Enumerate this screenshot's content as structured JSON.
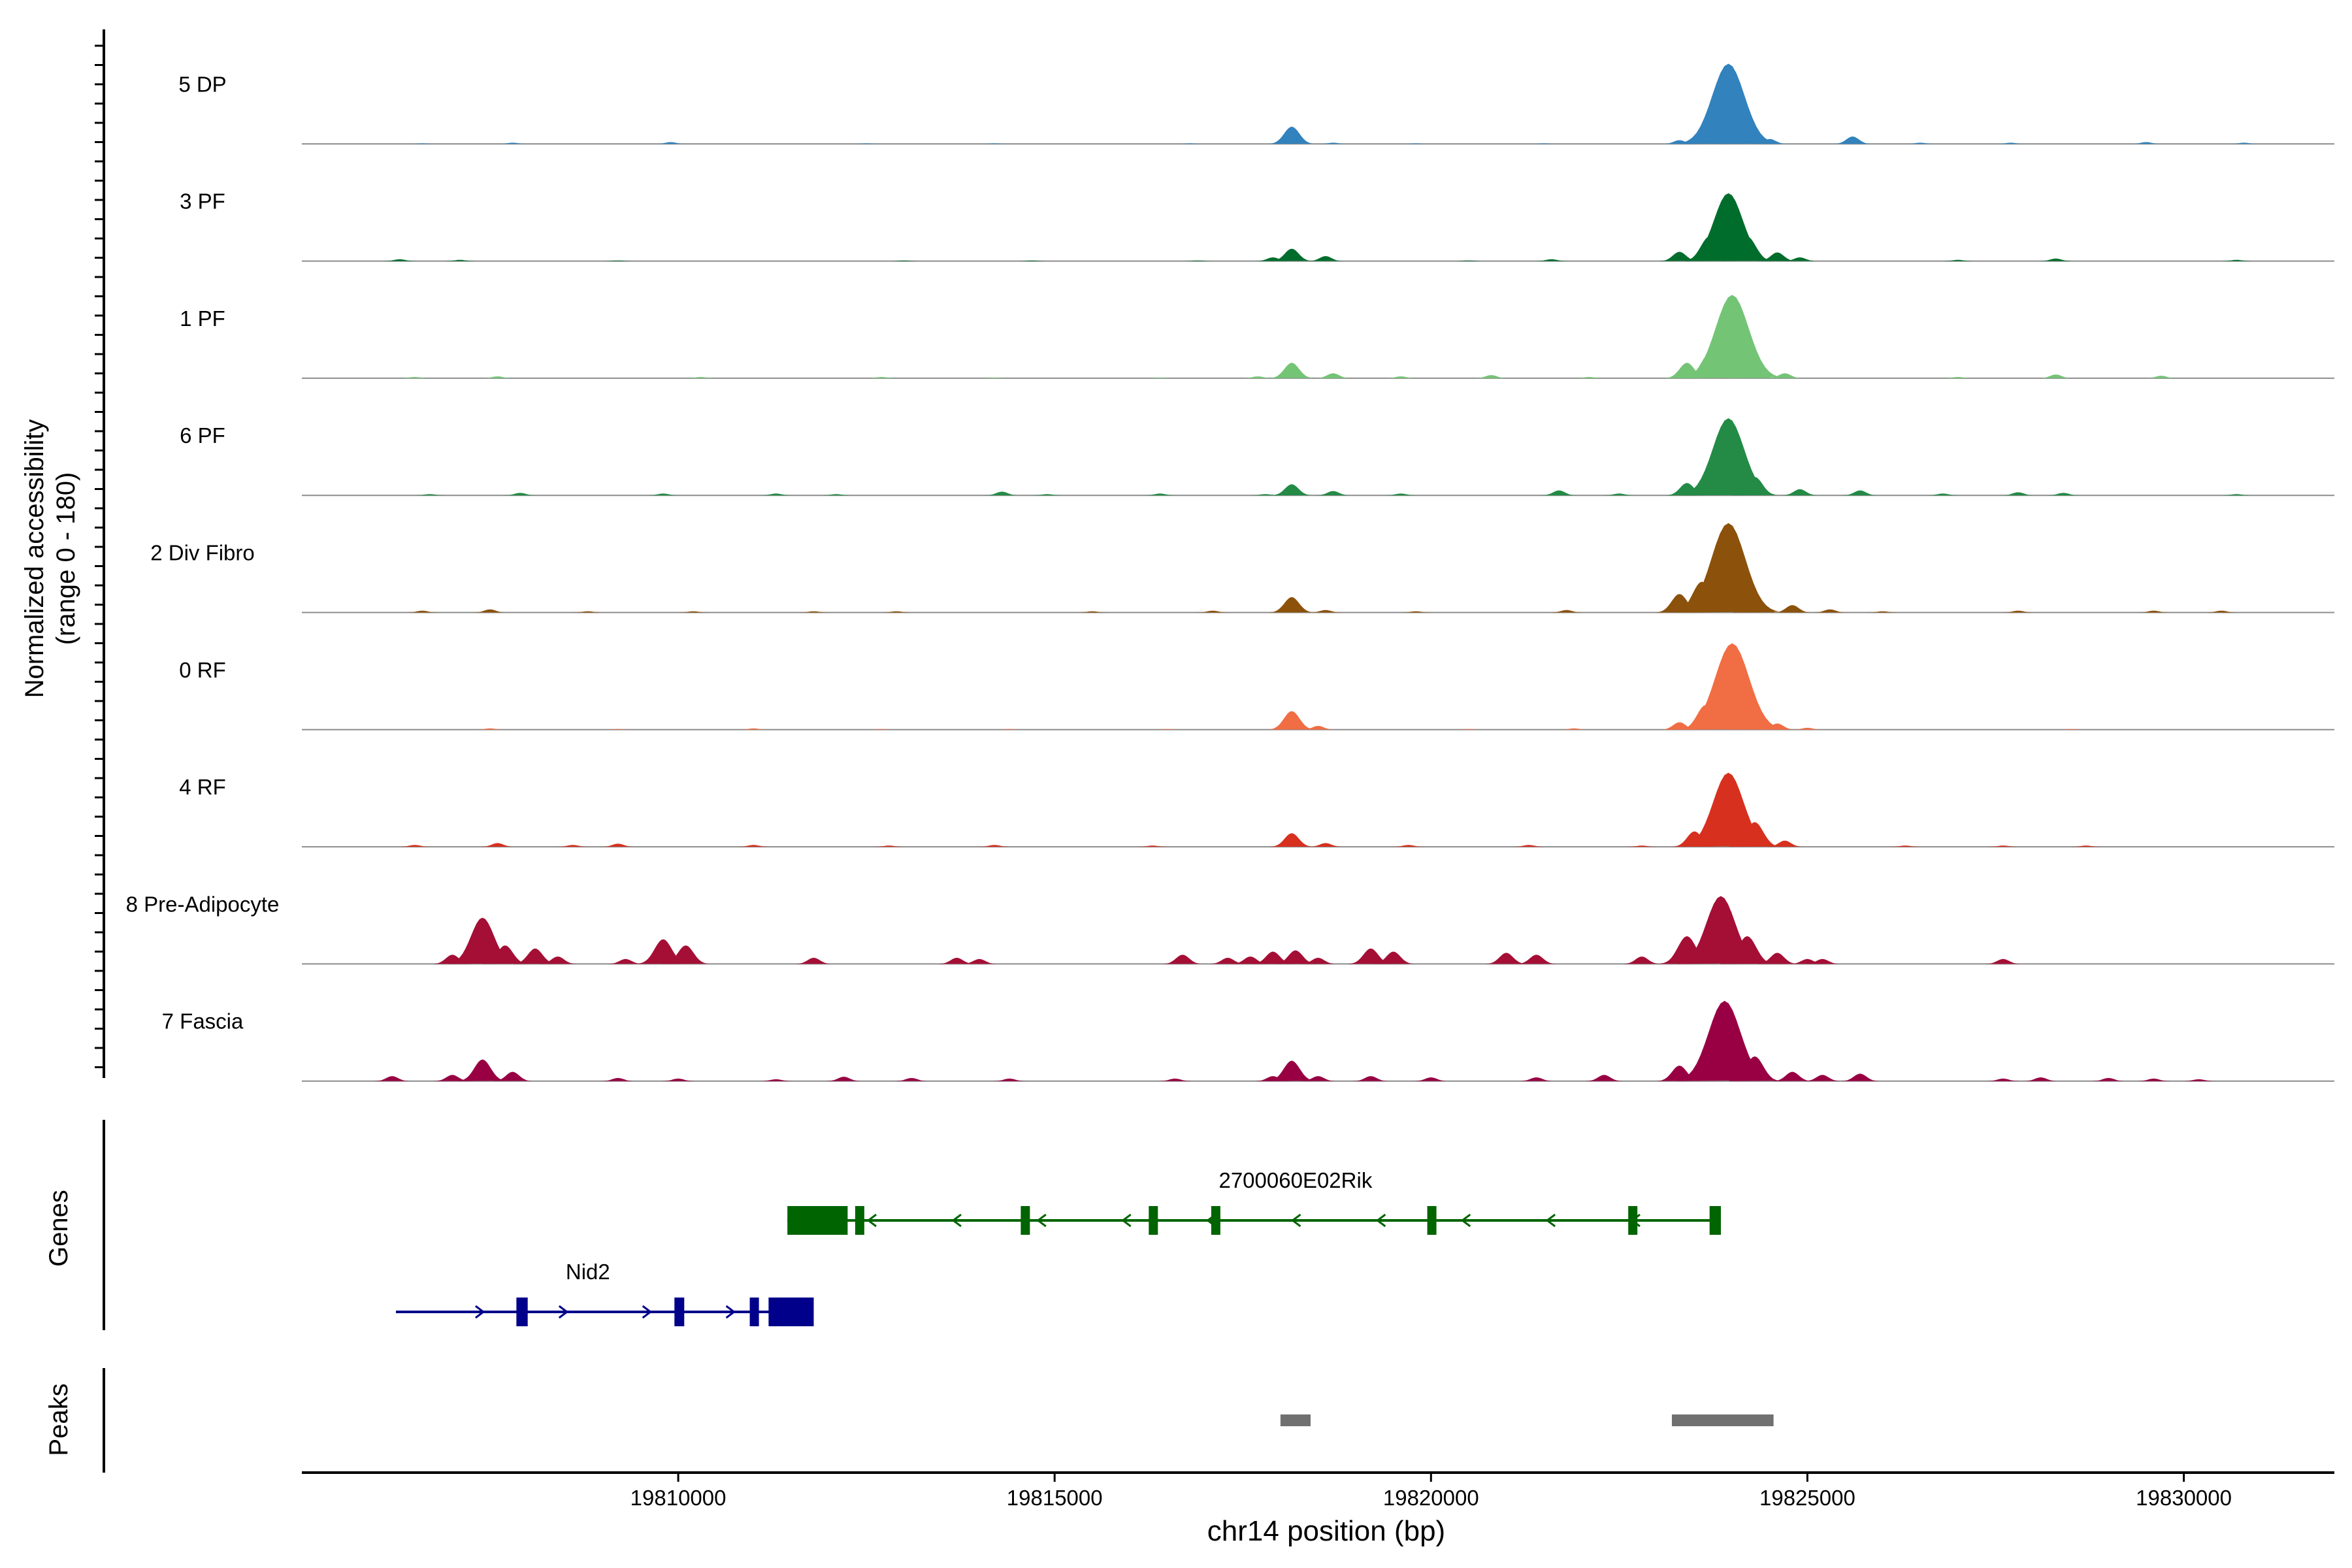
{
  "chart_data": {
    "type": "area",
    "title": "",
    "y_axis_label_line1": "Normalized accessibility",
    "y_axis_label_line2": "(range 0 - 180)",
    "xlabel": "chr14 position (bp)",
    "x_range": [
      19805000,
      19832000
    ],
    "x_ticks": [
      19810000,
      19815000,
      19820000,
      19825000,
      19830000
    ],
    "x_tick_labels": [
      "19810000",
      "19815000",
      "19820000",
      "19825000",
      "19830000"
    ],
    "y_range": [
      0,
      180
    ],
    "tracks": [
      {
        "name": "5 DP",
        "color": "#3182BD",
        "peaks": [
          [
            19806600,
            1
          ],
          [
            19807800,
            2
          ],
          [
            19809900,
            3
          ],
          [
            19812500,
            1
          ],
          [
            19814200,
            1
          ],
          [
            19816800,
            1
          ],
          [
            19818150,
            28
          ],
          [
            19818700,
            2
          ],
          [
            19819800,
            1
          ],
          [
            19821500,
            1
          ],
          [
            19823300,
            6
          ],
          [
            19823750,
            45
          ],
          [
            19823950,
            130
          ],
          [
            19824150,
            40
          ],
          [
            19824500,
            8
          ],
          [
            19825600,
            12
          ],
          [
            19826500,
            2
          ],
          [
            19827700,
            2
          ],
          [
            19829500,
            3
          ],
          [
            19830800,
            2
          ]
        ]
      },
      {
        "name": "3 PF",
        "color": "#006D2C",
        "peaks": [
          [
            19806300,
            3
          ],
          [
            19807100,
            2
          ],
          [
            19809200,
            1
          ],
          [
            19813000,
            1
          ],
          [
            19814700,
            1
          ],
          [
            19816900,
            1
          ],
          [
            19817900,
            6
          ],
          [
            19818150,
            20
          ],
          [
            19818600,
            8
          ],
          [
            19820500,
            1
          ],
          [
            19821600,
            3
          ],
          [
            19823300,
            15
          ],
          [
            19823700,
            40
          ],
          [
            19823950,
            110
          ],
          [
            19824200,
            40
          ],
          [
            19824600,
            14
          ],
          [
            19824900,
            6
          ],
          [
            19827000,
            2
          ],
          [
            19828300,
            4
          ],
          [
            19830700,
            2
          ]
        ]
      },
      {
        "name": "1 PF",
        "color": "#74C476",
        "peaks": [
          [
            19806500,
            2
          ],
          [
            19807600,
            3
          ],
          [
            19810300,
            2
          ],
          [
            19812700,
            2
          ],
          [
            19814200,
            1
          ],
          [
            19816400,
            1
          ],
          [
            19817700,
            3
          ],
          [
            19818150,
            25
          ],
          [
            19818700,
            8
          ],
          [
            19819600,
            3
          ],
          [
            19820800,
            5
          ],
          [
            19822100,
            2
          ],
          [
            19823400,
            25
          ],
          [
            19823700,
            40
          ],
          [
            19824000,
            135
          ],
          [
            19824250,
            30
          ],
          [
            19824700,
            8
          ],
          [
            19827000,
            2
          ],
          [
            19828300,
            6
          ],
          [
            19829700,
            4
          ]
        ]
      },
      {
        "name": "6 PF",
        "color": "#238B45",
        "peaks": [
          [
            19806700,
            2
          ],
          [
            19807900,
            4
          ],
          [
            19809800,
            3
          ],
          [
            19811300,
            3
          ],
          [
            19812100,
            2
          ],
          [
            19814300,
            6
          ],
          [
            19814900,
            2
          ],
          [
            19816400,
            3
          ],
          [
            19817800,
            2
          ],
          [
            19818150,
            18
          ],
          [
            19818700,
            7
          ],
          [
            19819600,
            3
          ],
          [
            19821700,
            8
          ],
          [
            19822500,
            3
          ],
          [
            19823400,
            20
          ],
          [
            19823750,
            50
          ],
          [
            19823950,
            125
          ],
          [
            19824300,
            30
          ],
          [
            19824900,
            10
          ],
          [
            19825700,
            8
          ],
          [
            19826800,
            3
          ],
          [
            19827800,
            5
          ],
          [
            19828400,
            4
          ],
          [
            19830700,
            2
          ]
        ]
      },
      {
        "name": "2 Div Fibro",
        "color": "#8C510A",
        "peaks": [
          [
            19806600,
            3
          ],
          [
            19807500,
            5
          ],
          [
            19808800,
            2
          ],
          [
            19810200,
            2
          ],
          [
            19811800,
            2
          ],
          [
            19812900,
            2
          ],
          [
            19815500,
            2
          ],
          [
            19817100,
            3
          ],
          [
            19818150,
            25
          ],
          [
            19818600,
            4
          ],
          [
            19819800,
            2
          ],
          [
            19821800,
            4
          ],
          [
            19823300,
            30
          ],
          [
            19823600,
            50
          ],
          [
            19823950,
            145
          ],
          [
            19824300,
            30
          ],
          [
            19824800,
            12
          ],
          [
            19825300,
            5
          ],
          [
            19826000,
            2
          ],
          [
            19827800,
            3
          ],
          [
            19829600,
            3
          ],
          [
            19830500,
            3
          ]
        ]
      },
      {
        "name": "0 RF",
        "color": "#F16D43",
        "peaks": [
          [
            19807500,
            2
          ],
          [
            19809200,
            1
          ],
          [
            19811000,
            2
          ],
          [
            19812700,
            1
          ],
          [
            19814400,
            1
          ],
          [
            19816500,
            1
          ],
          [
            19818150,
            30
          ],
          [
            19818500,
            6
          ],
          [
            19820500,
            1
          ],
          [
            19821900,
            2
          ],
          [
            19823300,
            12
          ],
          [
            19823650,
            40
          ],
          [
            19824000,
            140
          ],
          [
            19824300,
            40
          ],
          [
            19824600,
            10
          ],
          [
            19825000,
            3
          ],
          [
            19828500,
            1
          ]
        ]
      },
      {
        "name": "4 RF",
        "color": "#D7301F",
        "peaks": [
          [
            19806500,
            3
          ],
          [
            19807600,
            6
          ],
          [
            19808600,
            3
          ],
          [
            19809200,
            5
          ],
          [
            19811000,
            3
          ],
          [
            19812800,
            2
          ],
          [
            19814200,
            3
          ],
          [
            19816300,
            2
          ],
          [
            19818150,
            22
          ],
          [
            19818600,
            6
          ],
          [
            19819700,
            3
          ],
          [
            19821300,
            3
          ],
          [
            19822800,
            2
          ],
          [
            19823500,
            25
          ],
          [
            19823950,
            120
          ],
          [
            19824300,
            40
          ],
          [
            19824700,
            10
          ],
          [
            19826300,
            2
          ],
          [
            19827600,
            2
          ],
          [
            19828700,
            2
          ]
        ]
      },
      {
        "name": "8 Pre-Adipocyte",
        "color": "#A50F35",
        "peaks": [
          [
            19807000,
            15
          ],
          [
            19807400,
            75
          ],
          [
            19807700,
            30
          ],
          [
            19808100,
            25
          ],
          [
            19808400,
            12
          ],
          [
            19809300,
            8
          ],
          [
            19809800,
            40
          ],
          [
            19810100,
            30
          ],
          [
            19811800,
            10
          ],
          [
            19813700,
            10
          ],
          [
            19814000,
            8
          ],
          [
            19816700,
            15
          ],
          [
            19817300,
            10
          ],
          [
            19817600,
            12
          ],
          [
            19817900,
            20
          ],
          [
            19818200,
            22
          ],
          [
            19818500,
            10
          ],
          [
            19819200,
            25
          ],
          [
            19819500,
            20
          ],
          [
            19821000,
            18
          ],
          [
            19821400,
            15
          ],
          [
            19822800,
            12
          ],
          [
            19823400,
            45
          ],
          [
            19823850,
            110
          ],
          [
            19824200,
            45
          ],
          [
            19824600,
            18
          ],
          [
            19825000,
            8
          ],
          [
            19825200,
            8
          ],
          [
            19827600,
            8
          ]
        ]
      },
      {
        "name": "7 Fascia",
        "color": "#980043",
        "peaks": [
          [
            19806200,
            8
          ],
          [
            19807000,
            10
          ],
          [
            19807400,
            35
          ],
          [
            19807800,
            15
          ],
          [
            19809200,
            5
          ],
          [
            19810000,
            4
          ],
          [
            19811300,
            3
          ],
          [
            19812200,
            7
          ],
          [
            19813100,
            5
          ],
          [
            19814400,
            4
          ],
          [
            19816600,
            4
          ],
          [
            19817900,
            8
          ],
          [
            19818150,
            33
          ],
          [
            19818500,
            8
          ],
          [
            19819200,
            8
          ],
          [
            19820000,
            6
          ],
          [
            19821400,
            6
          ],
          [
            19822300,
            10
          ],
          [
            19823300,
            25
          ],
          [
            19823900,
            130
          ],
          [
            19824300,
            40
          ],
          [
            19824800,
            15
          ],
          [
            19825200,
            10
          ],
          [
            19825700,
            12
          ],
          [
            19827600,
            4
          ],
          [
            19828100,
            6
          ],
          [
            19829000,
            5
          ],
          [
            19829600,
            4
          ],
          [
            19830200,
            3
          ]
        ]
      }
    ],
    "genes_panel": {
      "label": "Genes",
      "genes": [
        {
          "name": "2700060E02Rik",
          "color": "#006400",
          "strand": "-",
          "start": 19811450,
          "end": 19823850,
          "exons": [
            [
              19811450,
              19812250
            ],
            [
              19812350,
              19812420
            ],
            [
              19814550,
              19814620
            ],
            [
              19816250,
              19816320
            ],
            [
              19817080,
              19817150
            ],
            [
              19819950,
              19820020
            ],
            [
              19822620,
              19822740
            ],
            [
              19823700,
              19823850
            ]
          ]
        },
        {
          "name": "Nid2",
          "color": "#00008B",
          "strand": "+",
          "start": 19806250,
          "end": 19811800,
          "exons": [
            [
              19807850,
              19808000
            ],
            [
              19809950,
              19810080
            ],
            [
              19810950,
              19811050
            ],
            [
              19811200,
              19811800
            ]
          ]
        }
      ]
    },
    "peaks_panel": {
      "label": "Peaks",
      "color": "#707070",
      "regions": [
        [
          19818000,
          19818400
        ],
        [
          19823200,
          19824550
        ]
      ]
    }
  }
}
